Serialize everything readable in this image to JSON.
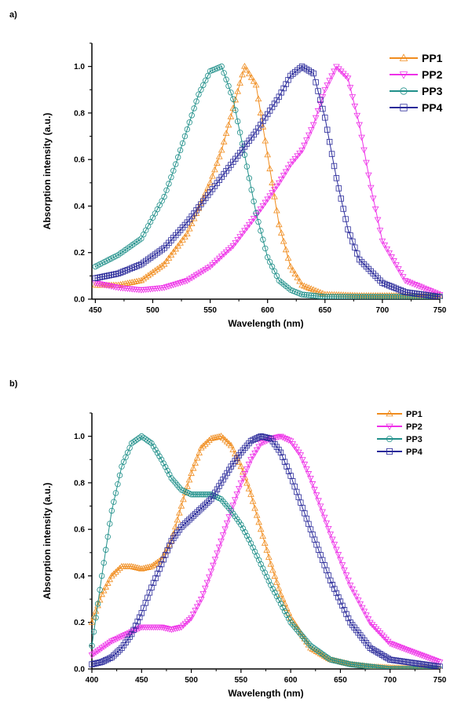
{
  "chart_data": [
    {
      "panel": "a)",
      "type": "line",
      "xlabel": "Wavelength (nm)",
      "ylabel": "Absorption intensity (a.u.)",
      "xlim": [
        450,
        750
      ],
      "ylim": [
        0,
        1.1
      ],
      "xticks": [
        450,
        500,
        550,
        600,
        650,
        700,
        750
      ],
      "yticks": [
        0.0,
        0.2,
        0.4,
        0.6,
        0.8,
        1.0
      ],
      "legend_position": "top-right",
      "series": [
        {
          "name": "PP1",
          "color": "#f08c1e",
          "marker": "triangle-up",
          "x": [
            450,
            470,
            490,
            510,
            530,
            550,
            560,
            570,
            580,
            590,
            600,
            610,
            620,
            630,
            650,
            680,
            750
          ],
          "y": [
            0.06,
            0.06,
            0.08,
            0.15,
            0.28,
            0.5,
            0.64,
            0.82,
            1.0,
            0.92,
            0.62,
            0.32,
            0.14,
            0.06,
            0.02,
            0.015,
            0.015
          ]
        },
        {
          "name": "PP2",
          "color": "#ee30e8",
          "marker": "triangle-down",
          "x": [
            450,
            470,
            490,
            510,
            530,
            550,
            570,
            590,
            610,
            620,
            630,
            640,
            650,
            660,
            670,
            680,
            690,
            700,
            720,
            750
          ],
          "y": [
            0.07,
            0.05,
            0.04,
            0.05,
            0.08,
            0.14,
            0.23,
            0.36,
            0.5,
            0.58,
            0.64,
            0.75,
            0.9,
            1.0,
            0.95,
            0.75,
            0.48,
            0.25,
            0.08,
            0.02
          ]
        },
        {
          "name": "PP3",
          "color": "#20908a",
          "marker": "circle",
          "x": [
            450,
            470,
            490,
            510,
            520,
            530,
            540,
            550,
            560,
            570,
            580,
            590,
            600,
            610,
            620,
            630,
            650,
            750
          ],
          "y": [
            0.14,
            0.19,
            0.26,
            0.44,
            0.58,
            0.73,
            0.88,
            0.98,
            1.0,
            0.86,
            0.62,
            0.37,
            0.18,
            0.08,
            0.04,
            0.02,
            0.01,
            0.01
          ]
        },
        {
          "name": "PP4",
          "color": "#2a2a9a",
          "marker": "square",
          "x": [
            450,
            470,
            490,
            510,
            530,
            550,
            570,
            590,
            610,
            620,
            630,
            640,
            650,
            660,
            670,
            680,
            700,
            720,
            750
          ],
          "y": [
            0.09,
            0.11,
            0.15,
            0.22,
            0.33,
            0.46,
            0.59,
            0.72,
            0.87,
            0.96,
            1.0,
            0.97,
            0.78,
            0.52,
            0.3,
            0.17,
            0.07,
            0.03,
            0.01
          ]
        }
      ]
    },
    {
      "panel": "b)",
      "type": "line",
      "xlabel": "Wavelength (nm)",
      "ylabel": "Absorption intensity (a.u.)",
      "xlim": [
        400,
        750
      ],
      "ylim": [
        0,
        1.1
      ],
      "xticks": [
        400,
        450,
        500,
        550,
        600,
        650,
        700,
        750
      ],
      "yticks": [
        0.0,
        0.2,
        0.4,
        0.6,
        0.8,
        1.0
      ],
      "legend_position": "top-right",
      "series": [
        {
          "name": "PP1",
          "color": "#f08c1e",
          "marker": "triangle-up",
          "x": [
            400,
            410,
            420,
            430,
            440,
            450,
            460,
            470,
            480,
            490,
            500,
            510,
            520,
            530,
            540,
            550,
            560,
            570,
            580,
            590,
            600,
            620,
            640,
            660,
            680,
            700,
            750
          ],
          "y": [
            0.2,
            0.32,
            0.4,
            0.44,
            0.44,
            0.43,
            0.44,
            0.47,
            0.55,
            0.7,
            0.84,
            0.95,
            0.99,
            1.0,
            0.96,
            0.87,
            0.75,
            0.6,
            0.45,
            0.32,
            0.22,
            0.09,
            0.04,
            0.02,
            0.01,
            0.005,
            0.0
          ]
        },
        {
          "name": "PP2",
          "color": "#ee30e8",
          "marker": "triangle-down",
          "x": [
            400,
            410,
            420,
            430,
            440,
            450,
            460,
            470,
            480,
            490,
            500,
            510,
            520,
            530,
            540,
            550,
            560,
            570,
            580,
            590,
            600,
            610,
            620,
            640,
            660,
            680,
            700,
            750
          ],
          "y": [
            0.06,
            0.09,
            0.12,
            0.14,
            0.16,
            0.18,
            0.18,
            0.18,
            0.17,
            0.18,
            0.22,
            0.3,
            0.42,
            0.55,
            0.68,
            0.8,
            0.9,
            0.97,
            0.99,
            1.0,
            0.98,
            0.92,
            0.82,
            0.58,
            0.36,
            0.2,
            0.11,
            0.03
          ]
        },
        {
          "name": "PP3",
          "color": "#20908a",
          "marker": "circle",
          "x": [
            400,
            410,
            420,
            430,
            440,
            450,
            460,
            470,
            480,
            490,
            500,
            510,
            520,
            530,
            540,
            550,
            560,
            570,
            580,
            590,
            600,
            620,
            640,
            660,
            680,
            700,
            750
          ],
          "y": [
            0.1,
            0.4,
            0.68,
            0.87,
            0.97,
            1.0,
            0.97,
            0.9,
            0.82,
            0.77,
            0.75,
            0.75,
            0.75,
            0.73,
            0.68,
            0.62,
            0.54,
            0.45,
            0.36,
            0.28,
            0.2,
            0.1,
            0.04,
            0.02,
            0.01,
            0.0,
            0.0
          ]
        },
        {
          "name": "PP4",
          "color": "#2a2a9a",
          "marker": "square",
          "x": [
            400,
            410,
            420,
            430,
            440,
            450,
            460,
            470,
            480,
            490,
            500,
            510,
            520,
            530,
            540,
            550,
            560,
            570,
            580,
            590,
            600,
            620,
            640,
            660,
            680,
            700,
            750
          ],
          "y": [
            0.02,
            0.03,
            0.05,
            0.09,
            0.15,
            0.24,
            0.35,
            0.45,
            0.55,
            0.61,
            0.65,
            0.69,
            0.73,
            0.8,
            0.87,
            0.93,
            0.98,
            1.0,
            0.99,
            0.93,
            0.83,
            0.6,
            0.38,
            0.2,
            0.09,
            0.04,
            0.01
          ]
        }
      ]
    }
  ]
}
